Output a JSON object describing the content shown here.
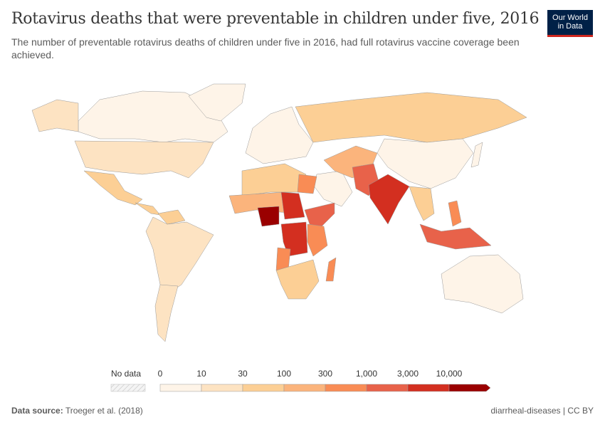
{
  "header": {
    "title": "Rotavirus deaths that were preventable in children under five, 2016",
    "subtitle": "The number of preventable rotavirus deaths of children under five in 2016, had full rotavirus vaccine coverage been achieved.",
    "logo_line1": "Our World",
    "logo_line2": "in Data"
  },
  "legend": {
    "no_data_label": "No data",
    "no_data_color": "#eeeeee",
    "ticks": [
      "0",
      "10",
      "30",
      "100",
      "300",
      "1,000",
      "3,000",
      "10,000"
    ],
    "colors": [
      "#fef4e8",
      "#fde3c2",
      "#fccf95",
      "#fbb47c",
      "#f98c55",
      "#e8624a",
      "#d32f20",
      "#9a0000"
    ]
  },
  "map_regions": [
    {
      "region": "north-america-canada",
      "bin": 0
    },
    {
      "region": "greenland",
      "bin": 0
    },
    {
      "region": "alaska",
      "bin": 1
    },
    {
      "region": "usa",
      "bin": 1
    },
    {
      "region": "mexico",
      "bin": 2
    },
    {
      "region": "central-america",
      "bin": 2
    },
    {
      "region": "south-america",
      "bin": 1
    },
    {
      "region": "venezuela",
      "bin": 2
    },
    {
      "region": "argentina-chile",
      "bin": 1
    },
    {
      "region": "europe",
      "bin": 0
    },
    {
      "region": "russia",
      "bin": 2
    },
    {
      "region": "china",
      "bin": 0
    },
    {
      "region": "middle-east",
      "bin": 0
    },
    {
      "region": "iran-central-asia",
      "bin": 3
    },
    {
      "region": "afghanistan-pakistan",
      "bin": 5
    },
    {
      "region": "india",
      "bin": 6
    },
    {
      "region": "southeast-asia",
      "bin": 2
    },
    {
      "region": "indonesia",
      "bin": 5
    },
    {
      "region": "australia",
      "bin": 0
    },
    {
      "region": "north-africa",
      "bin": 2
    },
    {
      "region": "egypt",
      "bin": 4
    },
    {
      "region": "sahel",
      "bin": 3
    },
    {
      "region": "nigeria",
      "bin": 7
    },
    {
      "region": "sudan",
      "bin": 6
    },
    {
      "region": "ethiopia",
      "bin": 5
    },
    {
      "region": "drc",
      "bin": 6
    },
    {
      "region": "angola",
      "bin": 4
    },
    {
      "region": "east-africa",
      "bin": 4
    },
    {
      "region": "southern-africa",
      "bin": 2
    },
    {
      "region": "madagascar",
      "bin": 4
    },
    {
      "region": "japan",
      "bin": 0
    },
    {
      "region": "philippines",
      "bin": 4
    }
  ],
  "footer": {
    "source_label": "Data source:",
    "source": "Troeger et al. (2018)",
    "right": "diarrheal-diseases | CC BY"
  }
}
